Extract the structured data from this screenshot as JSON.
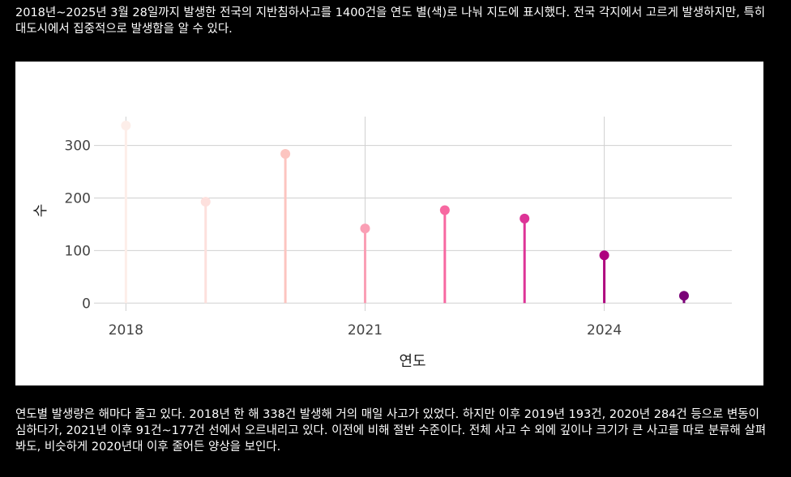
{
  "intro_text": "2018년~2025년 3월 28일까지 발생한 전국의 지반침하사고를 1400건을 연도 별(색)로 나눠 지도에 표시했다. 전국 각지에서 고르게 발생하지만, 특히 대도시에서 집중적으로 발생함을 알 수 있다.",
  "outro_text": "연도별 발생량은 해마다 줄고 있다. 2018년 한 해 338건 발생해 거의 매일 사고가 있었다. 하지만 이후 2019년 193건, 2020년 284건 등으로 변동이 심하다가, 2021년 이후 91건~177건 선에서 오르내리고 있다. 이전에 비해 절반 수준이다. 전체 사고 수 외에 깊이나 크기가 큰 사고를 따로 분류해 살펴봐도, 비슷하게 2020년대 이후 줄어든 양상을 보인다.",
  "chart_data": {
    "type": "lollipop",
    "title": "",
    "xlabel": "연도",
    "ylabel": "수",
    "x": [
      2018,
      2019,
      2020,
      2021,
      2022,
      2023,
      2024,
      2025
    ],
    "values": [
      338,
      193,
      284,
      142,
      177,
      161,
      91,
      14
    ],
    "colors": [
      "#fdeee9",
      "#fde0dd",
      "#fcc5c0",
      "#fa9fb5",
      "#f768a1",
      "#dd3497",
      "#ae017e",
      "#7a0177"
    ],
    "xticks": [
      "2018",
      "2021",
      "2024"
    ],
    "yticks": [
      "0",
      "100",
      "200",
      "300"
    ],
    "xlim": [
      2017.6,
      2025.6
    ],
    "ylim": [
      -15,
      355
    ],
    "grid": true
  }
}
